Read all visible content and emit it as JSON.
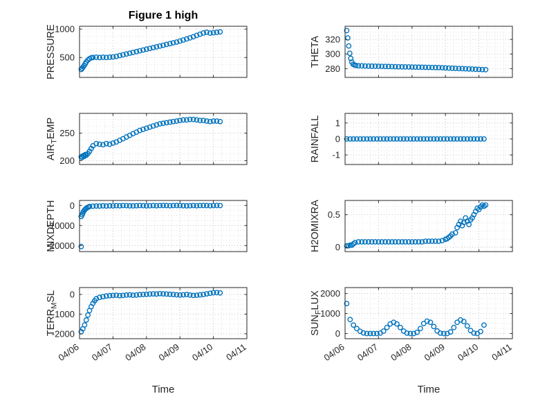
{
  "figure": {
    "title": "Figure 1 high",
    "xlabel": "Time",
    "xtick_labels": [
      "04/06",
      "04/07",
      "04/08",
      "04/09",
      "04/10",
      "04/11"
    ],
    "marker_color": "#0072BD",
    "axis_color": "#262626",
    "grid_color": "#c2c2c2",
    "minor_grid_color": "#e0e0e0"
  },
  "chart_data": [
    {
      "name": "pressure",
      "type": "scatter",
      "row": 0,
      "col": 0,
      "ylabel": "PRESSURE",
      "ylim": [
        150,
        1050
      ],
      "yticks": [
        500,
        1000
      ],
      "x": [
        0.05,
        0.08,
        0.11,
        0.14,
        0.17,
        0.2,
        0.25,
        0.3,
        0.35,
        0.4,
        0.5,
        0.6,
        0.7,
        0.8,
        0.9,
        1.0,
        1.1,
        1.2,
        1.3,
        1.4,
        1.5,
        1.6,
        1.7,
        1.8,
        1.9,
        2.0,
        2.1,
        2.2,
        2.3,
        2.4,
        2.5,
        2.6,
        2.7,
        2.8,
        2.9,
        3.0,
        3.1,
        3.2,
        3.3,
        3.4,
        3.5,
        3.6,
        3.7,
        3.8,
        3.9,
        4.0,
        4.1,
        4.2
      ],
      "y": [
        290,
        310,
        335,
        360,
        390,
        420,
        455,
        480,
        495,
        500,
        505,
        500,
        505,
        502,
        506,
        510,
        520,
        534,
        548,
        562,
        576,
        590,
        604,
        618,
        632,
        646,
        660,
        674,
        688,
        702,
        716,
        730,
        744,
        758,
        772,
        790,
        808,
        826,
        846,
        866,
        888,
        910,
        932,
        945,
        930,
        936,
        944,
        952
      ]
    },
    {
      "name": "theta",
      "type": "scatter",
      "row": 0,
      "col": 1,
      "ylabel": "THETA",
      "ylim": [
        268,
        338
      ],
      "yticks": [
        280,
        300,
        320
      ],
      "x": [
        0.05,
        0.08,
        0.11,
        0.14,
        0.17,
        0.2,
        0.24,
        0.28,
        0.32,
        0.4,
        0.5,
        0.6,
        0.7,
        0.8,
        0.9,
        1.0,
        1.1,
        1.2,
        1.3,
        1.4,
        1.5,
        1.6,
        1.7,
        1.8,
        1.9,
        2.0,
        2.1,
        2.2,
        2.3,
        2.4,
        2.5,
        2.6,
        2.7,
        2.8,
        2.9,
        3.0,
        3.1,
        3.2,
        3.3,
        3.4,
        3.5,
        3.6,
        3.7,
        3.8,
        3.9,
        4.0,
        4.1,
        4.2
      ],
      "y": [
        332,
        322,
        311,
        301,
        294,
        289,
        286,
        285,
        284.5,
        284,
        283.8,
        283.6,
        283.5,
        283.4,
        283.3,
        283.2,
        283.1,
        283,
        282.9,
        282.8,
        282.7,
        282.6,
        282.5,
        282.4,
        282.3,
        282.2,
        282.1,
        282,
        281.9,
        281.8,
        281.7,
        281.6,
        281.5,
        281.4,
        281.2,
        281,
        280.8,
        280.6,
        280.4,
        280.2,
        280,
        279.8,
        279.6,
        279.4,
        279.2,
        279,
        278.8,
        278.6
      ]
    },
    {
      "name": "air_temp",
      "type": "scatter",
      "row": 1,
      "col": 0,
      "ylabel": "AIR_TEMP",
      "ylim": [
        193,
        286
      ],
      "yticks": [
        200,
        250
      ],
      "x": [
        0.05,
        0.08,
        0.11,
        0.14,
        0.17,
        0.2,
        0.25,
        0.3,
        0.35,
        0.4,
        0.5,
        0.6,
        0.7,
        0.8,
        0.9,
        1.0,
        1.1,
        1.2,
        1.3,
        1.4,
        1.5,
        1.6,
        1.7,
        1.8,
        1.9,
        2.0,
        2.1,
        2.2,
        2.3,
        2.4,
        2.5,
        2.6,
        2.7,
        2.8,
        2.9,
        3.0,
        3.1,
        3.2,
        3.3,
        3.4,
        3.5,
        3.6,
        3.7,
        3.8,
        3.9,
        4.0,
        4.1,
        4.2
      ],
      "y": [
        207,
        206,
        209,
        208,
        211,
        210,
        213,
        217,
        222,
        227,
        231,
        230,
        229,
        231,
        230,
        232,
        234,
        237,
        240,
        243,
        246,
        249,
        252,
        255,
        257,
        259,
        261,
        263,
        265,
        267,
        268,
        269,
        270,
        271,
        272,
        273,
        274,
        274,
        275,
        275,
        274,
        273,
        273,
        272,
        271,
        272,
        272,
        271
      ]
    },
    {
      "name": "rainfall",
      "type": "scatter",
      "row": 1,
      "col": 1,
      "ylabel": "RAINFALL",
      "ylim": [
        -1.6,
        1.6
      ],
      "yticks": [
        -1,
        0,
        1
      ],
      "x": [
        0.05,
        0.15,
        0.25,
        0.35,
        0.45,
        0.55,
        0.65,
        0.75,
        0.85,
        0.95,
        1.05,
        1.15,
        1.25,
        1.35,
        1.45,
        1.55,
        1.65,
        1.75,
        1.85,
        1.95,
        2.05,
        2.15,
        2.25,
        2.35,
        2.45,
        2.55,
        2.65,
        2.75,
        2.85,
        2.95,
        3.05,
        3.15,
        3.25,
        3.35,
        3.45,
        3.55,
        3.65,
        3.75,
        3.85,
        3.95,
        4.05,
        4.15
      ],
      "y": [
        0,
        0,
        0,
        0,
        0,
        0,
        0,
        0,
        0,
        0,
        0,
        0,
        0,
        0,
        0,
        0,
        0,
        0,
        0,
        0,
        0,
        0,
        0,
        0,
        0,
        0,
        0,
        0,
        0,
        0,
        0,
        0,
        0,
        0,
        0,
        0,
        0,
        0,
        0,
        0,
        0,
        0
      ]
    },
    {
      "name": "mixdepth",
      "type": "scatter",
      "row": 2,
      "col": 0,
      "ylabel": "MIXDEPTH",
      "ylim": [
        -23000,
        2500
      ],
      "yticks": [
        -20000,
        -10000,
        0
      ],
      "x": [
        0.05,
        0.05,
        0.08,
        0.1,
        0.12,
        0.15,
        0.18,
        0.22,
        0.26,
        0.3,
        0.4,
        0.5,
        0.6,
        0.7,
        0.8,
        0.9,
        1.0,
        1.1,
        1.2,
        1.3,
        1.4,
        1.5,
        1.6,
        1.7,
        1.8,
        1.9,
        2.0,
        2.1,
        2.2,
        2.3,
        2.4,
        2.5,
        2.6,
        2.7,
        2.8,
        2.9,
        3.0,
        3.1,
        3.2,
        3.3,
        3.4,
        3.5,
        3.6,
        3.7,
        3.8,
        3.9,
        4.0,
        4.1,
        4.2
      ],
      "y": [
        -20500,
        -5500,
        -4600,
        -3800,
        -3000,
        -2300,
        -1700,
        -1200,
        -800,
        -500,
        -350,
        -250,
        -300,
        -200,
        -250,
        -150,
        -200,
        -100,
        -150,
        -60,
        -100,
        -150,
        -200,
        -120,
        -60,
        -100,
        -160,
        -110,
        -60,
        -120,
        -60,
        -10,
        -60,
        -110,
        -60,
        -10,
        -60,
        -120,
        -170,
        -110,
        -60,
        -120,
        -60,
        -10,
        -60,
        -110,
        -60,
        -10,
        -60
      ]
    },
    {
      "name": "h2omixra",
      "type": "scatter",
      "row": 2,
      "col": 1,
      "ylabel": "H2OMIXRA",
      "ylim": [
        -0.07,
        0.72
      ],
      "yticks": [
        0,
        0.5
      ],
      "x": [
        0.05,
        0.1,
        0.15,
        0.2,
        0.25,
        0.3,
        0.4,
        0.5,
        0.6,
        0.7,
        0.8,
        0.9,
        1.0,
        1.1,
        1.2,
        1.3,
        1.4,
        1.5,
        1.6,
        1.7,
        1.8,
        1.9,
        2.0,
        2.1,
        2.2,
        2.3,
        2.4,
        2.5,
        2.6,
        2.7,
        2.8,
        2.9,
        3.0,
        3.05,
        3.1,
        3.15,
        3.2,
        3.3,
        3.35,
        3.4,
        3.45,
        3.5,
        3.55,
        3.6,
        3.65,
        3.7,
        3.75,
        3.8,
        3.85,
        3.9,
        3.95,
        4.0,
        4.05,
        4.1,
        4.15,
        4.2
      ],
      "y": [
        0.02,
        0.02,
        0.03,
        0.03,
        0.05,
        0.07,
        0.08,
        0.08,
        0.08,
        0.08,
        0.08,
        0.08,
        0.08,
        0.08,
        0.08,
        0.08,
        0.08,
        0.08,
        0.08,
        0.08,
        0.08,
        0.08,
        0.08,
        0.08,
        0.08,
        0.08,
        0.09,
        0.09,
        0.09,
        0.09,
        0.09,
        0.1,
        0.12,
        0.13,
        0.15,
        0.17,
        0.2,
        0.22,
        0.3,
        0.35,
        0.4,
        0.33,
        0.38,
        0.45,
        0.4,
        0.35,
        0.42,
        0.45,
        0.5,
        0.55,
        0.6,
        0.58,
        0.62,
        0.65,
        0.63,
        0.65
      ]
    },
    {
      "name": "terr_msl",
      "type": "scatter",
      "row": 3,
      "col": 0,
      "ylabel": "TERR_MSL",
      "ylim": [
        -2250,
        350
      ],
      "yticks": [
        -2000,
        -1000,
        0
      ],
      "x": [
        0.05,
        0.1,
        0.15,
        0.2,
        0.25,
        0.3,
        0.35,
        0.4,
        0.45,
        0.5,
        0.6,
        0.7,
        0.8,
        0.9,
        1.0,
        1.1,
        1.2,
        1.3,
        1.4,
        1.5,
        1.6,
        1.7,
        1.8,
        1.9,
        2.0,
        2.1,
        2.2,
        2.3,
        2.4,
        2.5,
        2.6,
        2.7,
        2.8,
        2.9,
        3.0,
        3.1,
        3.2,
        3.3,
        3.4,
        3.5,
        3.6,
        3.7,
        3.8,
        3.9,
        4.0,
        4.1,
        4.2
      ],
      "y": [
        -1900,
        -1750,
        -1550,
        -1300,
        -1050,
        -820,
        -620,
        -450,
        -320,
        -220,
        -150,
        -110,
        -80,
        -60,
        -50,
        -40,
        -60,
        -50,
        -30,
        -20,
        -40,
        -30,
        -10,
        0,
        10,
        20,
        30,
        20,
        40,
        30,
        20,
        10,
        0,
        -20,
        -30,
        -20,
        0,
        -30,
        -50,
        -40,
        -20,
        0,
        30,
        60,
        85,
        95,
        75
      ]
    },
    {
      "name": "sun_flux",
      "type": "scatter",
      "row": 3,
      "col": 1,
      "ylabel": "SUN_FLUX",
      "ylim": [
        -260,
        2300
      ],
      "yticks": [
        0,
        1000,
        2000
      ],
      "x": [
        0.05,
        0.15,
        0.25,
        0.35,
        0.45,
        0.55,
        0.65,
        0.75,
        0.85,
        0.95,
        1.05,
        1.15,
        1.25,
        1.35,
        1.45,
        1.55,
        1.65,
        1.75,
        1.85,
        1.95,
        2.05,
        2.15,
        2.25,
        2.35,
        2.45,
        2.55,
        2.65,
        2.75,
        2.85,
        2.95,
        3.05,
        3.15,
        3.25,
        3.35,
        3.45,
        3.55,
        3.65,
        3.75,
        3.85,
        3.95,
        4.05,
        4.15
      ],
      "y": [
        1500,
        700,
        420,
        250,
        110,
        30,
        0,
        0,
        0,
        0,
        20,
        120,
        300,
        480,
        560,
        480,
        300,
        120,
        20,
        0,
        0,
        60,
        250,
        500,
        620,
        560,
        350,
        130,
        20,
        0,
        0,
        80,
        300,
        560,
        680,
        600,
        380,
        150,
        20,
        0,
        100,
        420
      ]
    }
  ]
}
